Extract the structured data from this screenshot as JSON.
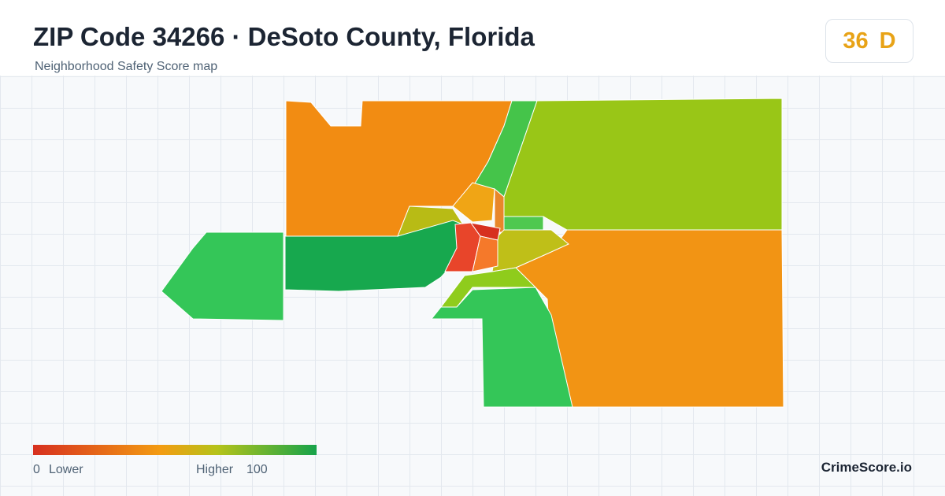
{
  "header": {
    "title": "ZIP Code 34266 · DeSoto County, Florida",
    "subtitle": "Neighborhood Safety Score map"
  },
  "score": {
    "value": "36",
    "grade": "D"
  },
  "legend": {
    "min": "0",
    "min_label": "Lower",
    "max_label": "Higher",
    "max": "100"
  },
  "brand": "CrimeScore.io"
}
